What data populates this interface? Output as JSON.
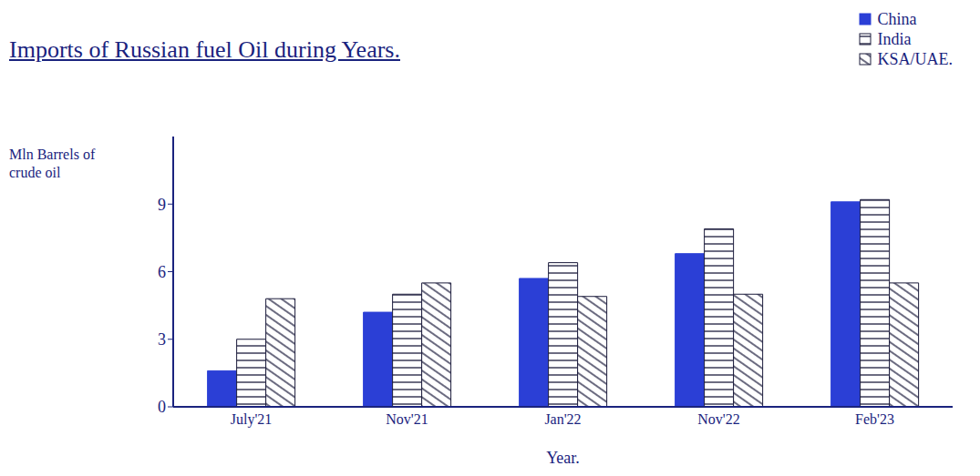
{
  "chart_data": {
    "type": "bar",
    "title": "Imports of Russian fuel Oil during Years.",
    "x_label": "Year.",
    "y_label": "Mln Barrels of crude oil",
    "categories": [
      "July'21",
      "Nov'21",
      "Jan'22",
      "Nov'22",
      "Feb'23"
    ],
    "series": [
      {
        "name": "China",
        "color": "#2b3fd6",
        "values": [
          1.6,
          4.2,
          5.7,
          6.8,
          9.1
        ]
      },
      {
        "name": "India",
        "color": "#1c1c3c",
        "values": [
          3.0,
          5.0,
          6.4,
          7.9,
          9.2
        ]
      },
      {
        "name": "KSA/UAE.",
        "color": "#1c1c3c",
        "values": [
          4.8,
          5.5,
          4.9,
          5.0,
          5.5
        ]
      }
    ],
    "ylim": [
      0,
      12
    ],
    "yticks": [
      0,
      3,
      6,
      9
    ],
    "grid": false,
    "legend": "upper right"
  }
}
